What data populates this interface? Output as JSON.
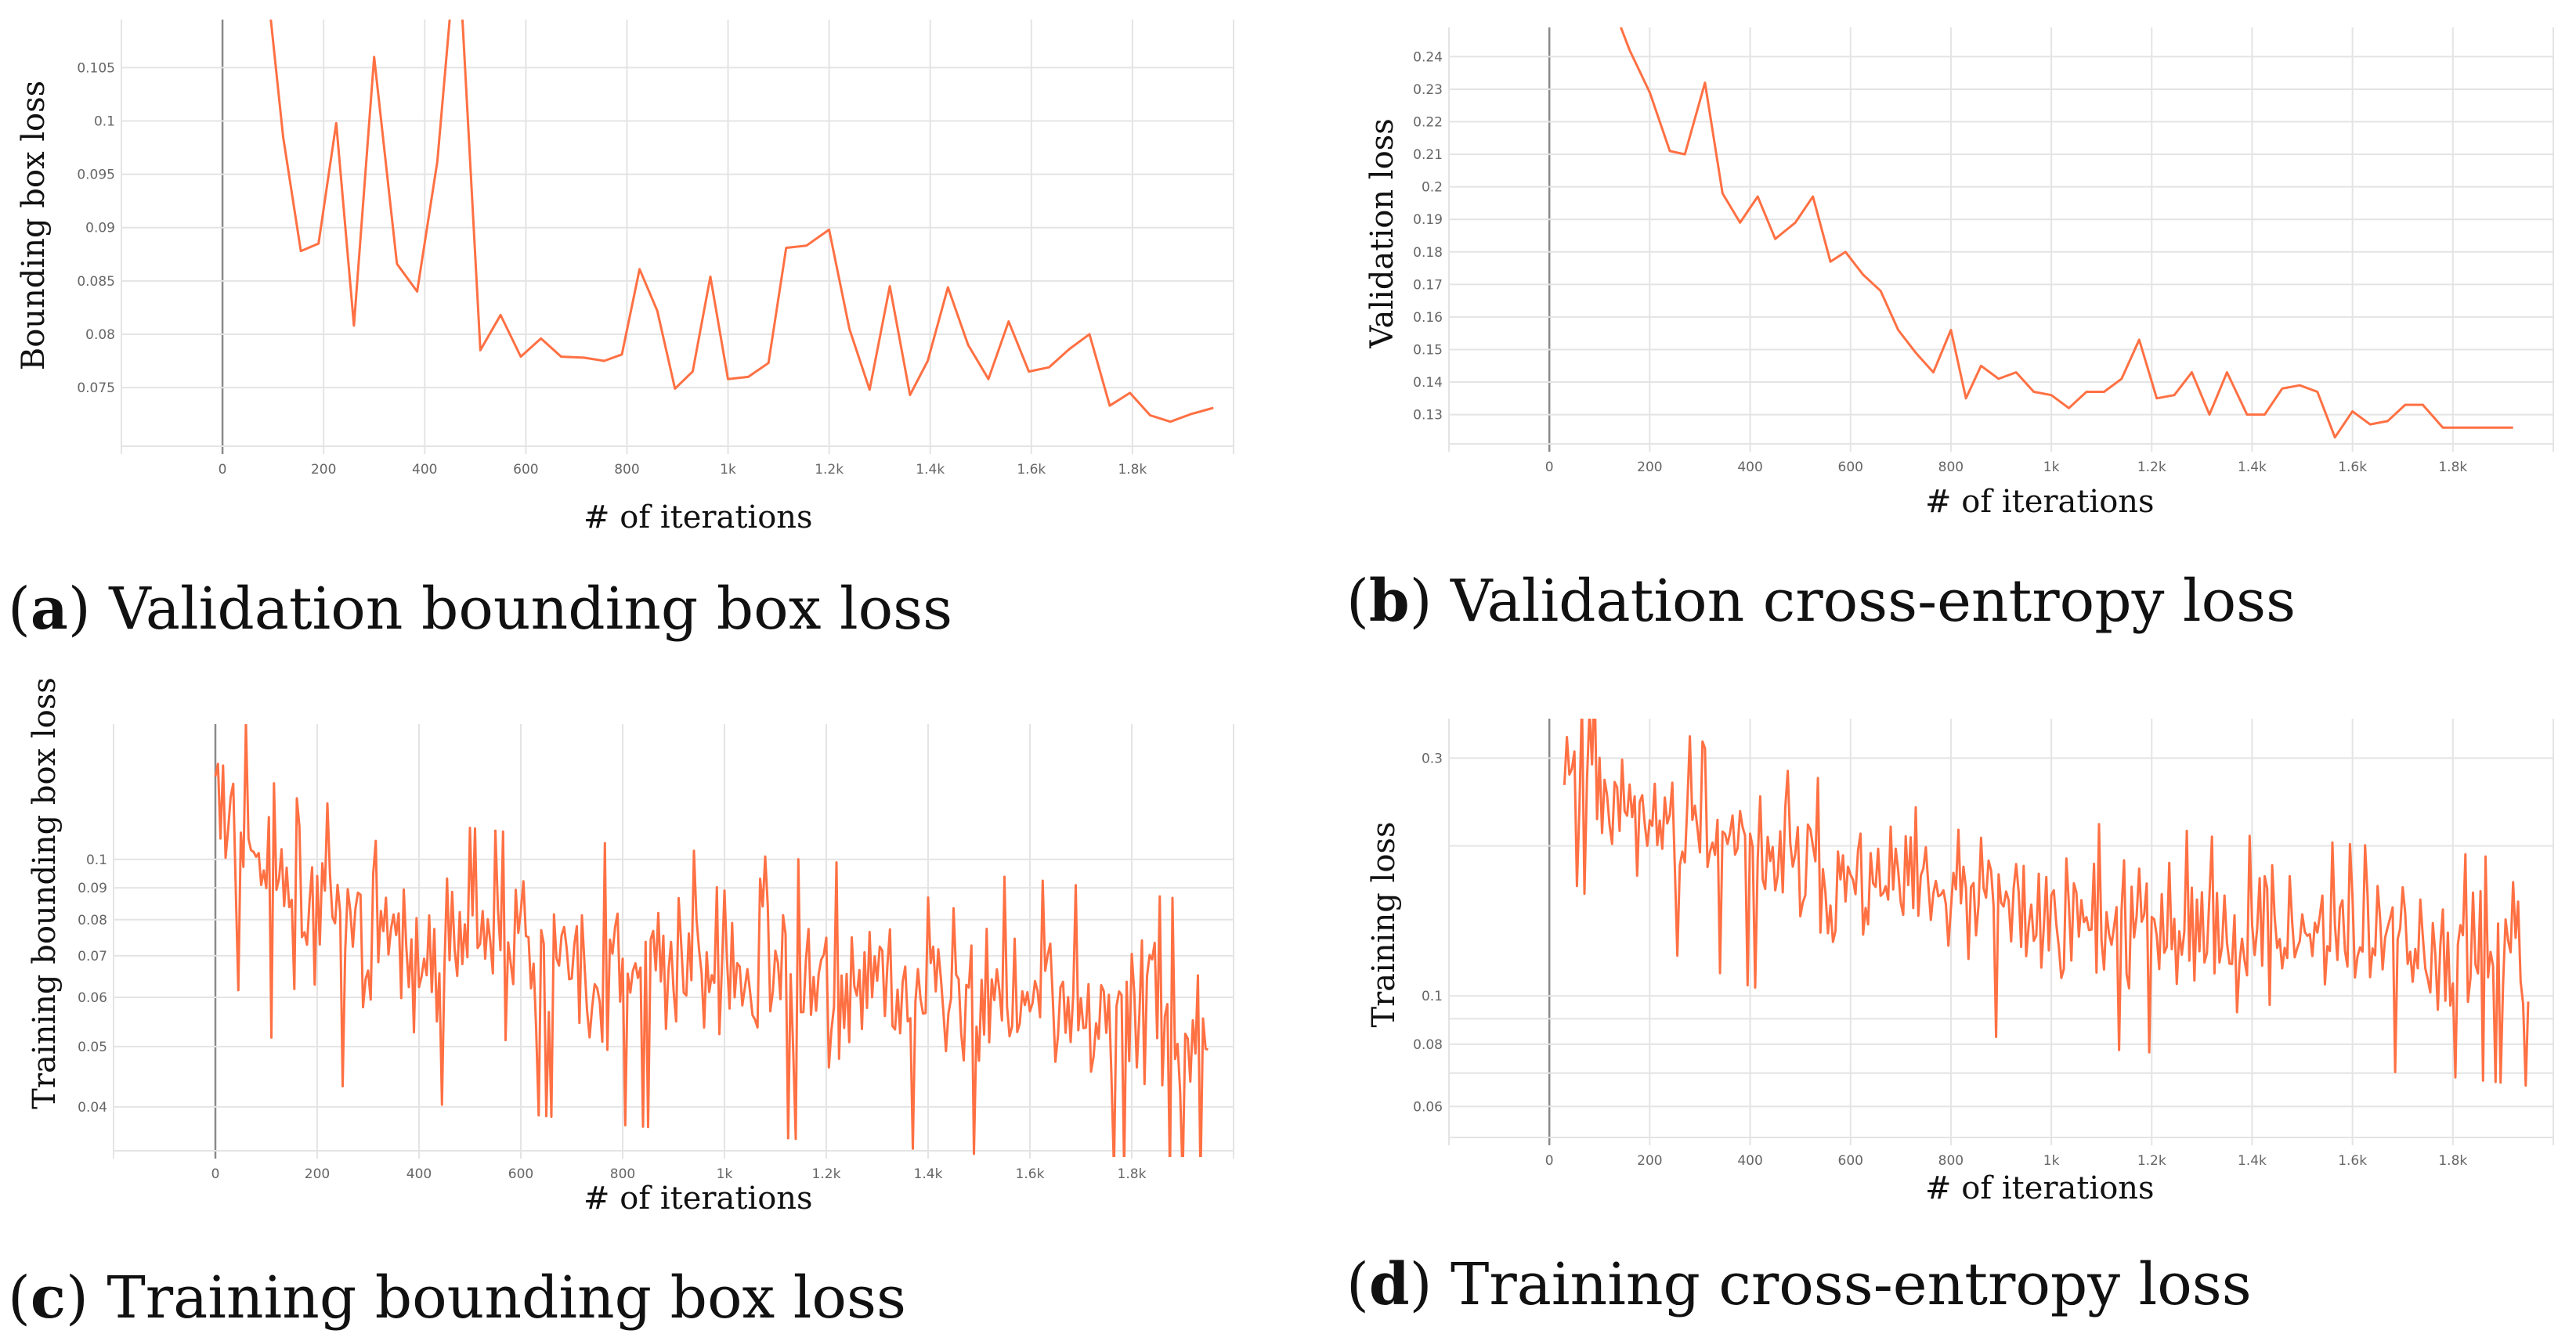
{
  "colors": {
    "series": "#ff7043",
    "grid": "#e4e4e4",
    "zero_line": "#8a8a8a",
    "tick_text": "#666666"
  },
  "chart_data": [
    {
      "id": "a",
      "type": "line",
      "caption_letter": "a",
      "caption_text": "Validation bounding box loss",
      "xlabel": "# of iterations",
      "ylabel": "Bounding box loss",
      "xlim": [
        -200,
        2000
      ],
      "ylim": [
        0.0695,
        0.1095
      ],
      "yscale": "linear",
      "xticks": [
        0,
        200,
        400,
        600,
        800,
        1000,
        1200,
        1400,
        1600,
        1800
      ],
      "xtick_labels": [
        "0",
        "200",
        "400",
        "600",
        "800",
        "1k",
        "1.2k",
        "1.4k",
        "1.6k",
        "1.8k"
      ],
      "yticks": [
        0.075,
        0.08,
        0.085,
        0.09,
        0.095,
        0.1,
        0.105
      ],
      "ytick_labels": [
        "0.075",
        "0.08",
        "0.085",
        "0.09",
        "0.095",
        "0.1",
        "0.105"
      ],
      "x": [
        90,
        120,
        155,
        190,
        225,
        260,
        300,
        345,
        385,
        425,
        465,
        510,
        550,
        590,
        630,
        670,
        715,
        755,
        790,
        825,
        860,
        895,
        930,
        965,
        1000,
        1040,
        1080,
        1115,
        1155,
        1200,
        1240,
        1280,
        1320,
        1360,
        1395,
        1435,
        1475,
        1515,
        1555,
        1595,
        1635,
        1675,
        1715,
        1755,
        1795,
        1835,
        1875,
        1915,
        1960
      ],
      "y": [
        0.112,
        0.0985,
        0.0878,
        0.0885,
        0.0998,
        0.0808,
        0.106,
        0.0866,
        0.084,
        0.0962,
        0.118,
        0.0785,
        0.0818,
        0.0779,
        0.0796,
        0.0779,
        0.0778,
        0.0775,
        0.0781,
        0.0861,
        0.0822,
        0.0749,
        0.0765,
        0.0854,
        0.0758,
        0.076,
        0.0773,
        0.0881,
        0.0883,
        0.0898,
        0.0805,
        0.0748,
        0.0845,
        0.0743,
        0.0775,
        0.0844,
        0.079,
        0.0758,
        0.0812,
        0.0765,
        0.0769,
        0.0786,
        0.08,
        0.0733,
        0.0745,
        0.0724,
        0.0718,
        0.0725,
        0.0731
      ]
    },
    {
      "id": "b",
      "type": "line",
      "caption_letter": "b",
      "caption_text": "Validation cross-entropy loss",
      "xlabel": "# of iterations",
      "ylabel": "Validation loss",
      "xlim": [
        -200,
        2000
      ],
      "ylim": [
        0.121,
        0.249
      ],
      "yscale": "linear",
      "xticks": [
        0,
        200,
        400,
        600,
        800,
        1000,
        1200,
        1400,
        1600,
        1800
      ],
      "xtick_labels": [
        "0",
        "200",
        "400",
        "600",
        "800",
        "1k",
        "1.2k",
        "1.4k",
        "1.6k",
        "1.8k"
      ],
      "yticks": [
        0.13,
        0.14,
        0.15,
        0.16,
        0.17,
        0.18,
        0.19,
        0.2,
        0.21,
        0.22,
        0.23,
        0.24
      ],
      "ytick_labels": [
        "0.13",
        "0.14",
        "0.15",
        "0.16",
        "0.17",
        "0.18",
        "0.19",
        "0.2",
        "0.21",
        "0.22",
        "0.23",
        "0.24"
      ],
      "x": [
        140,
        160,
        200,
        240,
        270,
        310,
        345,
        380,
        415,
        450,
        490,
        525,
        560,
        590,
        625,
        660,
        695,
        730,
        765,
        800,
        830,
        860,
        895,
        930,
        965,
        1000,
        1035,
        1070,
        1105,
        1140,
        1175,
        1210,
        1245,
        1280,
        1315,
        1350,
        1390,
        1425,
        1460,
        1495,
        1530,
        1565,
        1600,
        1635,
        1670,
        1705,
        1740,
        1780,
        1815,
        1850,
        1890,
        1920
      ],
      "y": [
        0.25,
        0.242,
        0.229,
        0.211,
        0.21,
        0.232,
        0.198,
        0.189,
        0.197,
        0.184,
        0.189,
        0.197,
        0.177,
        0.18,
        0.173,
        0.168,
        0.156,
        0.149,
        0.143,
        0.156,
        0.135,
        0.145,
        0.141,
        0.143,
        0.137,
        0.136,
        0.132,
        0.137,
        0.137,
        0.141,
        0.153,
        0.135,
        0.136,
        0.143,
        0.13,
        0.143,
        0.13,
        0.13,
        0.138,
        0.139,
        0.137,
        0.123,
        0.131,
        0.127,
        0.128,
        0.133,
        0.133,
        0.126,
        0.126,
        0.126,
        0.126,
        0.126
      ]
    },
    {
      "id": "c",
      "type": "line",
      "caption_letter": "c",
      "caption_text": "Training bounding box loss",
      "xlabel": "# of iterations",
      "ylabel": "Training bounding box loss",
      "xlim": [
        -200,
        2000
      ],
      "ylim": [
        0.034,
        0.165
      ],
      "yscale": "log",
      "noisy": true,
      "trend_x": [
        0,
        50,
        100,
        150,
        200,
        300,
        400,
        600,
        800,
        1000,
        1200,
        1400,
        1600,
        1800,
        1950
      ],
      "trend_y": [
        0.13,
        0.11,
        0.095,
        0.09,
        0.08,
        0.077,
        0.074,
        0.071,
        0.068,
        0.066,
        0.064,
        0.062,
        0.06,
        0.057,
        0.055
      ],
      "noise_amp": 0.26,
      "seed": 3,
      "xticks": [
        0,
        200,
        400,
        600,
        800,
        1000,
        1200,
        1400,
        1600,
        1800
      ],
      "xtick_labels": [
        "0",
        "200",
        "400",
        "600",
        "800",
        "1k",
        "1.2k",
        "1.4k",
        "1.6k",
        "1.8k"
      ],
      "yticks": [
        0.04,
        0.05,
        0.06,
        0.07,
        0.08,
        0.09,
        0.1
      ],
      "ytick_labels": [
        "0.04",
        "0.05",
        "0.06",
        "0.07",
        "0.08",
        "0.09",
        "0.1"
      ]
    },
    {
      "id": "d",
      "type": "line",
      "caption_letter": "d",
      "caption_text": "Training cross-entropy loss",
      "xlabel": "# of iterations",
      "ylabel": "Training loss",
      "xlim": [
        -200,
        2000
      ],
      "ylim": [
        0.052,
        0.36
      ],
      "yscale": "log",
      "noisy": true,
      "trend_x": [
        30,
        100,
        200,
        300,
        400,
        600,
        800,
        1000,
        1200,
        1400,
        1600,
        1800,
        1950
      ],
      "trend_y": [
        0.32,
        0.27,
        0.23,
        0.21,
        0.19,
        0.17,
        0.155,
        0.145,
        0.14,
        0.135,
        0.13,
        0.125,
        0.12
      ],
      "noise_amp": 0.28,
      "seed": 11,
      "xticks": [
        0,
        200,
        400,
        600,
        800,
        1000,
        1200,
        1400,
        1600,
        1800
      ],
      "xtick_labels": [
        "0",
        "200",
        "400",
        "600",
        "800",
        "1k",
        "1.2k",
        "1.4k",
        "1.6k",
        "1.8k"
      ],
      "yticks": [
        0.06,
        0.08,
        0.1,
        0.3
      ],
      "ytick_labels": [
        "0.06",
        "0.08",
        "0.1",
        "0.3"
      ],
      "minor_yticks": [
        0.07,
        0.09,
        0.2
      ]
    }
  ]
}
